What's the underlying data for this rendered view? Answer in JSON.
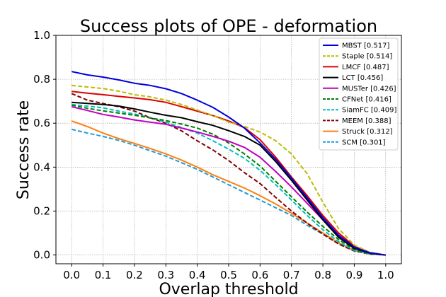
{
  "chart_data": {
    "type": "line",
    "title": "Success plots of OPE - deformation",
    "xlabel": "Overlap threshold",
    "ylabel": "Success rate",
    "xlim": [
      -0.05,
      1.05
    ],
    "ylim": [
      -0.04,
      1.0
    ],
    "xticks": [
      "0.0",
      "0.1",
      "0.2",
      "0.3",
      "0.4",
      "0.5",
      "0.6",
      "0.7",
      "0.8",
      "0.9",
      "1.0"
    ],
    "yticks": [
      "0.0",
      "0.2",
      "0.4",
      "0.6",
      "0.8",
      "1.0"
    ],
    "grid": true,
    "legend_position": "top-right",
    "x": [
      0,
      0.05,
      0.1,
      0.15,
      0.2,
      0.25,
      0.3,
      0.35,
      0.4,
      0.45,
      0.5,
      0.55,
      0.6,
      0.65,
      0.7,
      0.75,
      0.8,
      0.85,
      0.9,
      0.95,
      1.0
    ],
    "series": [
      {
        "name": "MBST [0.517]",
        "color": "#0000dd",
        "dash": "solid",
        "values": [
          0.835,
          0.82,
          0.81,
          0.797,
          0.782,
          0.772,
          0.757,
          0.735,
          0.705,
          0.672,
          0.628,
          0.578,
          0.51,
          0.435,
          0.35,
          0.26,
          0.17,
          0.09,
          0.035,
          0.01,
          0.0
        ]
      },
      {
        "name": "Staple [0.514]",
        "color": "#bcbc00",
        "dash": "dashed",
        "values": [
          0.772,
          0.765,
          0.758,
          0.746,
          0.73,
          0.72,
          0.705,
          0.685,
          0.66,
          0.635,
          0.605,
          0.585,
          0.56,
          0.52,
          0.46,
          0.37,
          0.24,
          0.12,
          0.045,
          0.012,
          0.0
        ]
      },
      {
        "name": "LMCF [0.487]",
        "color": "#e00000",
        "dash": "solid",
        "values": [
          0.745,
          0.737,
          0.73,
          0.722,
          0.715,
          0.707,
          0.695,
          0.675,
          0.655,
          0.635,
          0.61,
          0.58,
          0.525,
          0.445,
          0.355,
          0.27,
          0.18,
          0.1,
          0.04,
          0.01,
          0.0
        ]
      },
      {
        "name": "LCT [0.456]",
        "color": "#000000",
        "dash": "solid",
        "values": [
          0.695,
          0.69,
          0.685,
          0.678,
          0.665,
          0.65,
          0.636,
          0.625,
          0.607,
          0.59,
          0.566,
          0.54,
          0.5,
          0.425,
          0.34,
          0.25,
          0.16,
          0.08,
          0.03,
          0.008,
          0.0
        ]
      },
      {
        "name": "MUSTer [0.426]",
        "color": "#c000c0",
        "dash": "solid",
        "values": [
          0.675,
          0.658,
          0.64,
          0.628,
          0.615,
          0.605,
          0.595,
          0.578,
          0.56,
          0.54,
          0.518,
          0.49,
          0.445,
          0.38,
          0.31,
          0.235,
          0.16,
          0.085,
          0.035,
          0.008,
          0.0
        ]
      },
      {
        "name": "CFNet [0.416]",
        "color": "#008000",
        "dash": "dashed",
        "values": [
          0.682,
          0.668,
          0.656,
          0.646,
          0.636,
          0.624,
          0.612,
          0.596,
          0.578,
          0.55,
          0.51,
          0.46,
          0.405,
          0.335,
          0.265,
          0.195,
          0.13,
          0.07,
          0.025,
          0.006,
          0.0
        ]
      },
      {
        "name": "SiamFC [0.409]",
        "color": "#00c0c0",
        "dash": "dashed",
        "values": [
          0.685,
          0.678,
          0.67,
          0.655,
          0.642,
          0.625,
          0.605,
          0.58,
          0.555,
          0.52,
          0.482,
          0.44,
          0.385,
          0.32,
          0.25,
          0.18,
          0.115,
          0.06,
          0.02,
          0.005,
          0.0
        ]
      },
      {
        "name": "MEEM [0.388]",
        "color": "#800000",
        "dash": "dashed",
        "values": [
          0.735,
          0.705,
          0.69,
          0.675,
          0.655,
          0.625,
          0.6,
          0.565,
          0.52,
          0.478,
          0.43,
          0.375,
          0.325,
          0.262,
          0.2,
          0.145,
          0.095,
          0.05,
          0.018,
          0.004,
          0.0
        ]
      },
      {
        "name": "Struck [0.312]",
        "color": "#ff7f0e",
        "dash": "solid",
        "values": [
          0.61,
          0.585,
          0.555,
          0.53,
          0.508,
          0.485,
          0.46,
          0.432,
          0.4,
          0.365,
          0.335,
          0.305,
          0.27,
          0.232,
          0.19,
          0.145,
          0.1,
          0.055,
          0.02,
          0.005,
          0.0
        ]
      },
      {
        "name": "SCM [0.301]",
        "color": "#1f9bd8",
        "dash": "dashed",
        "values": [
          0.572,
          0.555,
          0.54,
          0.522,
          0.5,
          0.475,
          0.45,
          0.42,
          0.39,
          0.355,
          0.32,
          0.285,
          0.25,
          0.215,
          0.18,
          0.135,
          0.095,
          0.05,
          0.018,
          0.004,
          0.0
        ]
      }
    ]
  }
}
